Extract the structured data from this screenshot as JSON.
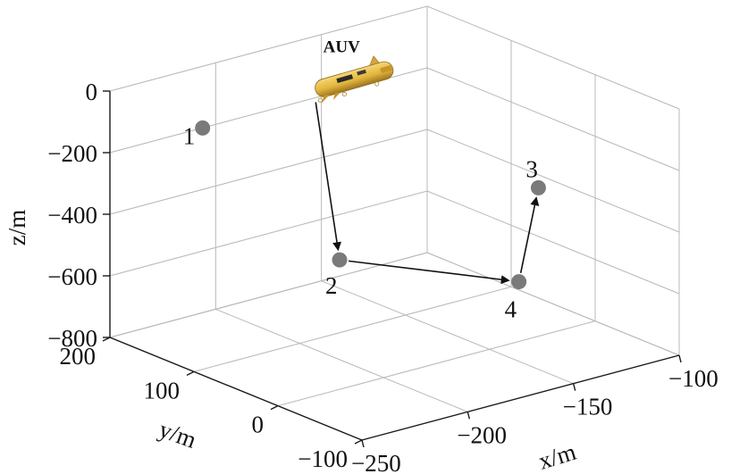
{
  "chart_data": {
    "type": "scatter3d",
    "xlabel": "x/m",
    "ylabel": "y/m",
    "zlabel": "z/m",
    "xlim": [
      -250,
      -100
    ],
    "ylim": [
      -100,
      200
    ],
    "zlim": [
      -800,
      0
    ],
    "xticks": [
      -250,
      -200,
      -150,
      -100
    ],
    "yticks": [
      -100,
      0,
      100,
      200
    ],
    "zticks": [
      0,
      -200,
      -400,
      -600,
      -800
    ],
    "xtick_labels": [
      "−250",
      "−200",
      "−150",
      "−100"
    ],
    "ytick_labels": [
      "−100",
      "0",
      "100",
      "200"
    ],
    "ztick_labels": [
      "0",
      "−200",
      "−400",
      "−600",
      "−800"
    ],
    "grid": true,
    "points": [
      {
        "label": "1",
        "x": -230,
        "y": 140,
        "z": -90
      },
      {
        "label": "2",
        "x": -197,
        "y": 60,
        "z": -490
      },
      {
        "label": "3",
        "x": -107,
        "y": 50,
        "z": -410
      },
      {
        "label": "4",
        "x": -146,
        "y": -25,
        "z": -560
      }
    ],
    "vehicle": {
      "label": "AUV",
      "x": -150,
      "y": 160,
      "z": -100
    },
    "path": [
      "AUV",
      "2",
      "4",
      "3"
    ],
    "point_color": "#7a7a7a",
    "arrow_color": "#111111",
    "vehicle_color": "#e2b53c"
  }
}
